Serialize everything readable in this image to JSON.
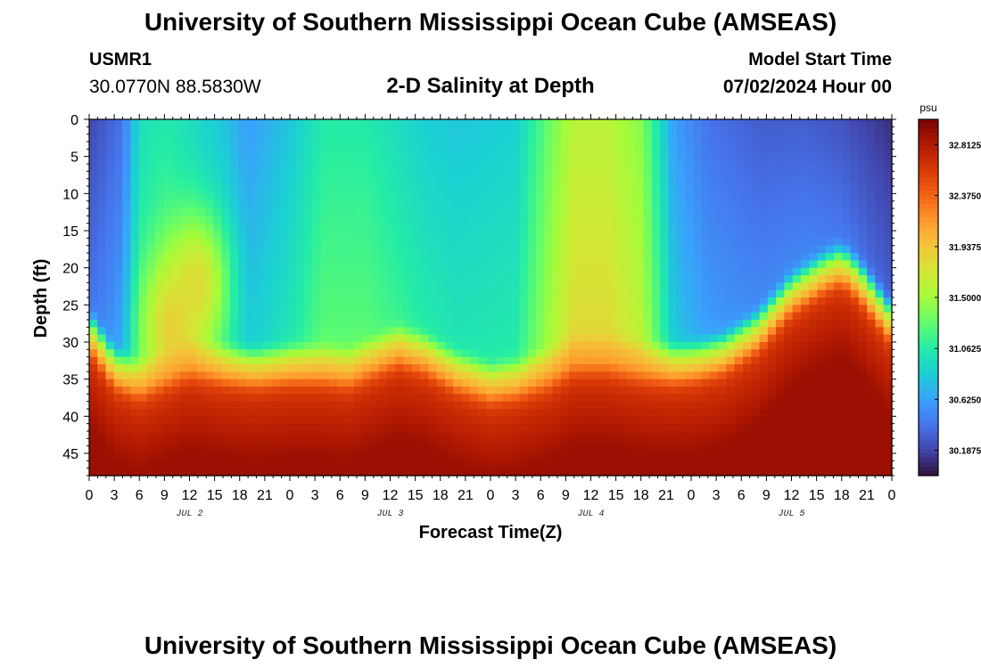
{
  "header": {
    "title": "University of Southern Mississippi Ocean Cube (AMSEAS)",
    "station_id": "USMR1",
    "station_coords": "30.0770N  88.5830W",
    "plot_title": "2-D Salinity at Depth",
    "start_label": "Model Start Time",
    "start_value": "07/02/2024 Hour 00"
  },
  "footer": {
    "title": "University of Southern Mississippi Ocean Cube (AMSEAS)"
  },
  "chart_data": {
    "type": "heatmap",
    "title": "2-D Salinity at Depth",
    "xlabel": "Forecast Time(Z)",
    "ylabel": "Depth (ft)",
    "xlim_hours": [
      0,
      96
    ],
    "ylim": [
      0,
      48
    ],
    "x_ticks": [
      "0",
      "3",
      "6",
      "9",
      "12",
      "15",
      "18",
      "21",
      "0",
      "3",
      "6",
      "9",
      "12",
      "15",
      "18",
      "21",
      "0",
      "3",
      "6",
      "9",
      "12",
      "15",
      "18",
      "21",
      "0",
      "3",
      "6",
      "9",
      "12",
      "15",
      "18",
      "21",
      "0"
    ],
    "day_labels": [
      {
        "label": "JUL 2",
        "hour": 12
      },
      {
        "label": "JUL 3",
        "hour": 36
      },
      {
        "label": "JUL 4",
        "hour": 60
      },
      {
        "label": "JUL 5",
        "hour": 84
      }
    ],
    "y_ticks": [
      0,
      5,
      10,
      15,
      20,
      25,
      30,
      35,
      40,
      45
    ],
    "colorbar": {
      "unit": "psu",
      "min": 29.97,
      "max": 33.03,
      "ticks": [
        "32.8125",
        "32.3750",
        "31.9375",
        "31.5000",
        "31.0625",
        "30.6250",
        "30.1875"
      ],
      "colors": [
        "#30123b",
        "#4145ab",
        "#4675ed",
        "#39a2fc",
        "#1bcfd4",
        "#24eca6",
        "#61fc6c",
        "#a4fc3b",
        "#d1e834",
        "#f3c63a",
        "#fe9b2d",
        "#f36315",
        "#d93806",
        "#b11901",
        "#7a0403"
      ]
    },
    "surface_salinity": [
      [
        0,
        30.2
      ],
      [
        4,
        30.4
      ],
      [
        6,
        30.95
      ],
      [
        9,
        31.05
      ],
      [
        12,
        30.95
      ],
      [
        16,
        30.8
      ],
      [
        19,
        30.6
      ],
      [
        24,
        30.8
      ],
      [
        28,
        31.05
      ],
      [
        33,
        31.05
      ],
      [
        40,
        30.85
      ],
      [
        44,
        30.8
      ],
      [
        51,
        30.85
      ],
      [
        55,
        31.3
      ],
      [
        58,
        31.6
      ],
      [
        62,
        31.6
      ],
      [
        66,
        31.4
      ],
      [
        70,
        30.6
      ],
      [
        74,
        30.4
      ],
      [
        80,
        30.3
      ],
      [
        86,
        30.3
      ],
      [
        90,
        30.25
      ],
      [
        96,
        30.1
      ]
    ],
    "bottom_layer_top_ft": [
      [
        0,
        31
      ],
      [
        3,
        36
      ],
      [
        6,
        37.5
      ],
      [
        9,
        36
      ],
      [
        12,
        34.5
      ],
      [
        16,
        35.5
      ],
      [
        20,
        36
      ],
      [
        24,
        35.5
      ],
      [
        28,
        35.5
      ],
      [
        31,
        36
      ],
      [
        34,
        34.5
      ],
      [
        37,
        33
      ],
      [
        40,
        34
      ],
      [
        44,
        36.5
      ],
      [
        48,
        38
      ],
      [
        51,
        37.5
      ],
      [
        55,
        36
      ],
      [
        58,
        34
      ],
      [
        62,
        34
      ],
      [
        66,
        35
      ],
      [
        70,
        35.5
      ],
      [
        73,
        35
      ],
      [
        76,
        34
      ],
      [
        80,
        31
      ],
      [
        84,
        26
      ],
      [
        88,
        23
      ],
      [
        90,
        22
      ],
      [
        92,
        24
      ],
      [
        94,
        27
      ],
      [
        96,
        30
      ]
    ],
    "bottom_salinity": 32.6,
    "plume_sources": [
      {
        "hour": 10,
        "depth_ft": 28,
        "salinity": 31.95
      },
      {
        "hour": 13,
        "depth_ft": 22,
        "salinity": 31.85
      }
    ]
  }
}
